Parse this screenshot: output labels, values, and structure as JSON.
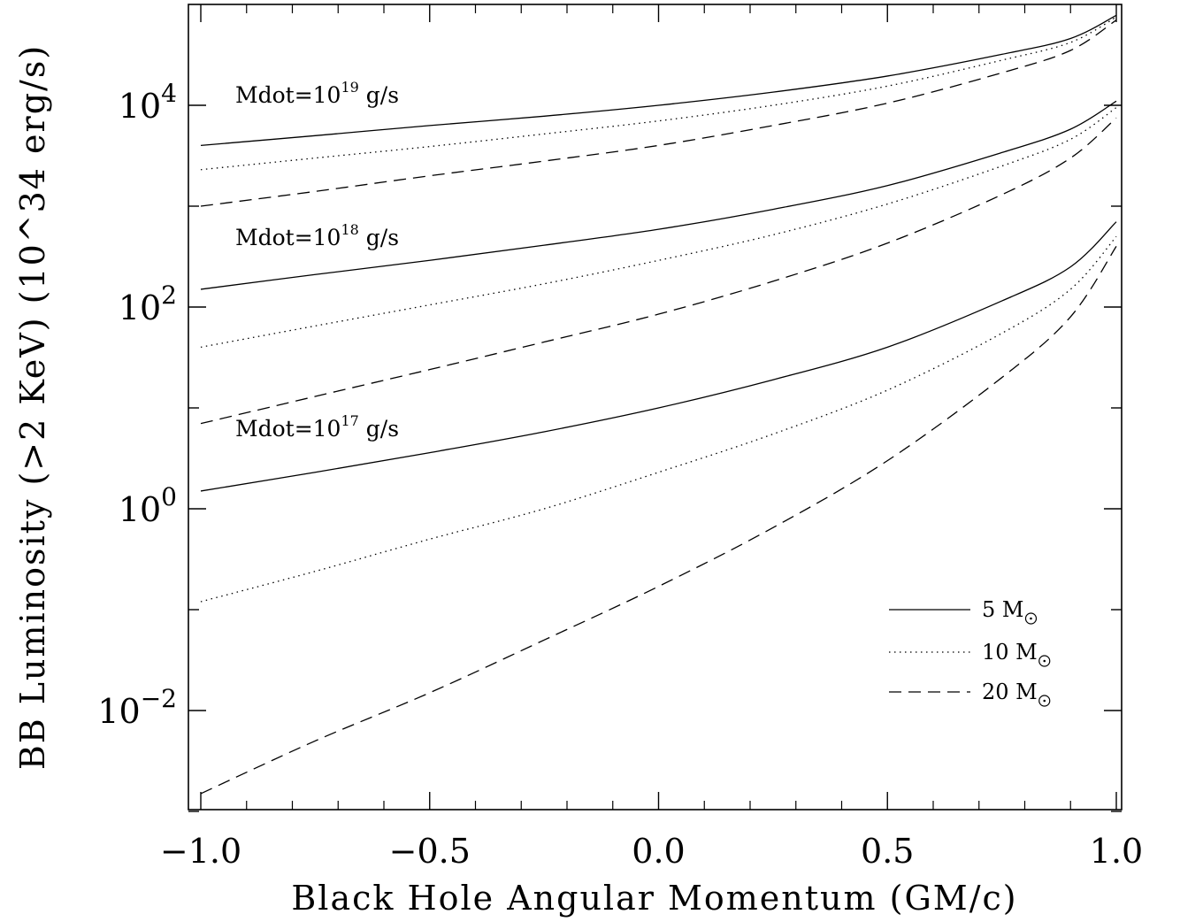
{
  "chart_data": {
    "type": "line",
    "xlabel": "Black Hole Angular Momentum (GM/c)",
    "ylabel": "BB Luminosity (>2 KeV) (10^34 erg/s)",
    "xlim": [
      -1.0,
      1.0
    ],
    "ylim_log10": [
      -3.0,
      4.75
    ],
    "y_scale": "log",
    "x_ticks": [
      "-1.0",
      "-0.5",
      "0.0",
      "0.5",
      "1.0"
    ],
    "y_ticks": [
      {
        "base": "10",
        "exp": "-2",
        "value": 0.01
      },
      {
        "base": "10",
        "exp": "0",
        "value": 1
      },
      {
        "base": "10",
        "exp": "2",
        "value": 100
      },
      {
        "base": "10",
        "exp": "4",
        "value": 10000
      }
    ],
    "groups": [
      {
        "label_prefix": "Mdot=10",
        "label_exp": "19",
        "label_suffix": " g/s"
      },
      {
        "label_prefix": "Mdot=10",
        "label_exp": "18",
        "label_suffix": " g/s"
      },
      {
        "label_prefix": "Mdot=10",
        "label_exp": "17",
        "label_suffix": " g/s"
      }
    ],
    "legend": {
      "position": "lower-right",
      "items": [
        {
          "mass": "5",
          "unit": "M",
          "style": "solid"
        },
        {
          "mass": "10",
          "unit": "M",
          "style": "dotted"
        },
        {
          "mass": "20",
          "unit": "M",
          "style": "dashed"
        }
      ]
    },
    "x": [
      -1.0,
      -0.75,
      -0.5,
      -0.25,
      0.0,
      0.25,
      0.5,
      0.75,
      0.9,
      1.0
    ],
    "series": [
      {
        "group": 0,
        "style": "solid",
        "values": [
          4000,
          5000,
          6300,
          7800,
          10000,
          13500,
          19500,
          32000,
          46000,
          78000
        ]
      },
      {
        "group": 0,
        "style": "dotted",
        "values": [
          2300,
          3000,
          3900,
          5200,
          7000,
          10000,
          15500,
          28000,
          42000,
          75000
        ]
      },
      {
        "group": 0,
        "style": "dashed",
        "values": [
          1000,
          1400,
          2000,
          2800,
          4000,
          6300,
          10500,
          21000,
          35000,
          70000
        ]
      },
      {
        "group": 1,
        "style": "solid",
        "values": [
          150,
          210,
          290,
          410,
          590,
          930,
          1600,
          3400,
          5800,
          11000
        ]
      },
      {
        "group": 1,
        "style": "dotted",
        "values": [
          40,
          65,
          105,
          170,
          290,
          520,
          1050,
          2500,
          4600,
          9500
        ]
      },
      {
        "group": 1,
        "style": "dashed",
        "values": [
          7,
          13,
          24,
          45,
          85,
          180,
          430,
          1300,
          3000,
          7500
        ]
      },
      {
        "group": 2,
        "style": "solid",
        "values": [
          1.5,
          2.3,
          3.6,
          5.8,
          10,
          19,
          40,
          115,
          250,
          700
        ]
      },
      {
        "group": 2,
        "style": "dotted",
        "values": [
          0.12,
          0.24,
          0.5,
          1.0,
          2.3,
          5.5,
          15,
          55,
          150,
          500
        ]
      },
      {
        "group": 2,
        "style": "dashed",
        "values": [
          0.0015,
          0.005,
          0.015,
          0.05,
          0.17,
          0.65,
          3,
          20,
          80,
          400
        ]
      }
    ]
  }
}
